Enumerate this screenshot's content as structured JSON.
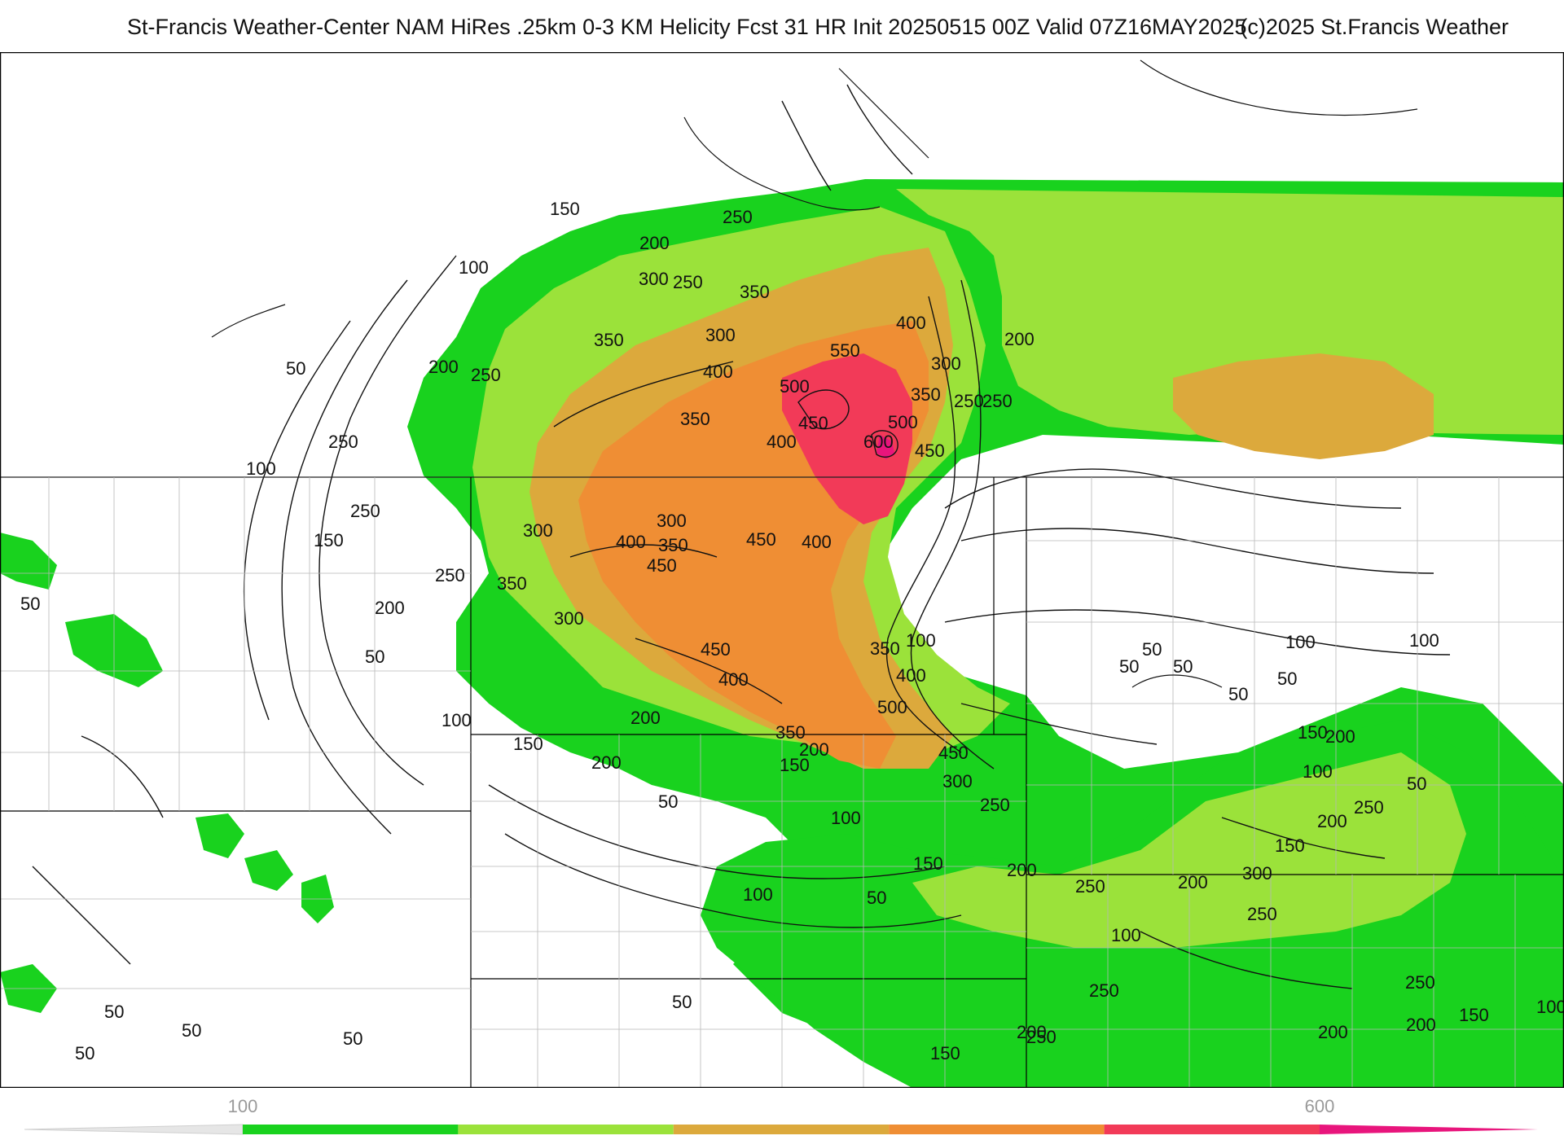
{
  "header": {
    "title": "St-Francis Weather-Center NAM HiRes .25km 0-3 KM Helicity Fcst 31 HR Init 20250515 00Z  Valid 07Z16MAY2025",
    "copyright": "(c)2025 St.Francis Weather"
  },
  "colorbar": {
    "ticks": [
      {
        "value": "100"
      },
      {
        "value": "600"
      }
    ],
    "bins": [
      {
        "from": 100,
        "to": 200,
        "color": "#19d21e"
      },
      {
        "from": 200,
        "to": 300,
        "color": "#9be23a"
      },
      {
        "from": 300,
        "to": 400,
        "color": "#dca93c"
      },
      {
        "from": 400,
        "to": 500,
        "color": "#ef8e34"
      },
      {
        "from": 500,
        "to": 600,
        "color": "#f23a58"
      },
      {
        "from": 600,
        "to": 700,
        "color": "#e8157c"
      }
    ]
  },
  "contour_labels": [
    "150",
    "200",
    "100",
    "250",
    "300",
    "250",
    "350",
    "300",
    "350",
    "400",
    "400",
    "550",
    "500",
    "300",
    "200",
    "250",
    "450",
    "500",
    "350",
    "600",
    "450",
    "250",
    "400",
    "350",
    "200",
    "50",
    "250",
    "100",
    "250",
    "150",
    "250",
    "300",
    "300",
    "400",
    "350",
    "450",
    "450",
    "400",
    "350",
    "250",
    "50",
    "200",
    "300",
    "450",
    "350",
    "100",
    "400",
    "50",
    "400",
    "100",
    "500",
    "200",
    "350",
    "150",
    "450",
    "200",
    "150",
    "50",
    "200",
    "300",
    "100",
    "250",
    "150",
    "200",
    "50",
    "100",
    "250",
    "100",
    "250",
    "50",
    "250",
    "150",
    "200",
    "200",
    "150",
    "300",
    "250",
    "200",
    "250",
    "200",
    "150",
    "100",
    "50",
    "100",
    "50",
    "50",
    "50",
    "100",
    "50",
    "50",
    "50",
    "50",
    "200",
    "250",
    "200",
    "150",
    "100",
    "50",
    "50"
  ]
}
